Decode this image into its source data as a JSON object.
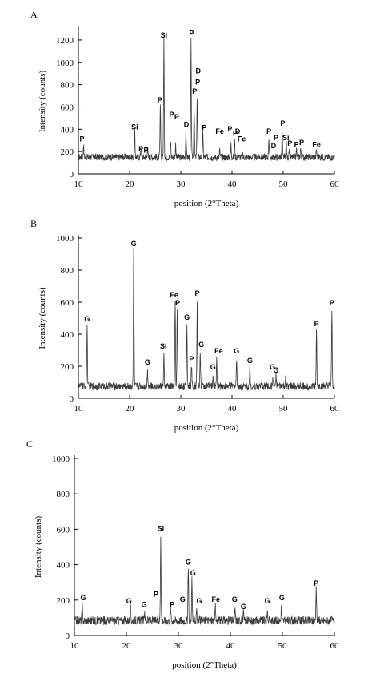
{
  "chart_data": [
    {
      "type": "line",
      "panel": "A",
      "xlabel": "position (2°Theta)",
      "ylabel": "Intensity (counts)",
      "xlim": [
        10,
        60
      ],
      "ylim": [
        0,
        1300
      ],
      "xticks": [
        10,
        20,
        30,
        40,
        50,
        60
      ],
      "yticks": [
        0,
        200,
        400,
        600,
        800,
        1000,
        1200
      ],
      "grid": false,
      "baseline": 150,
      "peaks": [
        [
          11,
          270
        ],
        [
          21,
          380
        ],
        [
          22.2,
          250
        ],
        [
          23.5,
          240
        ],
        [
          26,
          620
        ],
        [
          26.7,
          1200
        ],
        [
          28,
          300
        ],
        [
          29,
          270
        ],
        [
          31,
          400
        ],
        [
          32,
          1190
        ],
        [
          32.6,
          610
        ],
        [
          33.2,
          700
        ],
        [
          34.3,
          370
        ],
        [
          37.6,
          210
        ],
        [
          39.8,
          270
        ],
        [
          40.5,
          310
        ],
        [
          41.2,
          200
        ],
        [
          42,
          190
        ],
        [
          47.2,
          330
        ],
        [
          49.8,
          370
        ],
        [
          50.6,
          280
        ],
        [
          51.2,
          210
        ],
        [
          52.6,
          220
        ],
        [
          53.4,
          230
        ],
        [
          56.5,
          220
        ]
      ],
      "annotations": [
        {
          "text": "P",
          "x": 10.7,
          "y": 290
        },
        {
          "text": "Si",
          "x": 21,
          "y": 400
        },
        {
          "text": "P",
          "x": 22.2,
          "y": 200
        },
        {
          "text": "P",
          "x": 23.2,
          "y": 190
        },
        {
          "text": "P",
          "x": 25.9,
          "y": 640
        },
        {
          "text": "Si",
          "x": 26.7,
          "y": 1220
        },
        {
          "text": "P",
          "x": 28.2,
          "y": 510
        },
        {
          "text": "P",
          "x": 29.2,
          "y": 490
        },
        {
          "text": "D",
          "x": 31.1,
          "y": 420
        },
        {
          "text": "P",
          "x": 32.1,
          "y": 1240
        },
        {
          "text": "P",
          "x": 32.7,
          "y": 720
        },
        {
          "text": "P",
          "x": 33.3,
          "y": 800
        },
        {
          "text": "D",
          "x": 33.4,
          "y": 900
        },
        {
          "text": "P",
          "x": 34.6,
          "y": 390
        },
        {
          "text": "Fe",
          "x": 37.6,
          "y": 360
        },
        {
          "text": "P",
          "x": 39.6,
          "y": 380
        },
        {
          "text": "P",
          "x": 40.6,
          "y": 340
        },
        {
          "text": "D",
          "x": 41.1,
          "y": 360
        },
        {
          "text": "Fe",
          "x": 41.9,
          "y": 290
        },
        {
          "text": "P",
          "x": 47.2,
          "y": 360
        },
        {
          "text": "D",
          "x": 48.1,
          "y": 230
        },
        {
          "text": "P",
          "x": 48.6,
          "y": 300
        },
        {
          "text": "P",
          "x": 49.9,
          "y": 430
        },
        {
          "text": "Si",
          "x": 50.5,
          "y": 300
        },
        {
          "text": "P",
          "x": 51.3,
          "y": 250
        },
        {
          "text": "P",
          "x": 52.6,
          "y": 240
        },
        {
          "text": "P",
          "x": 53.6,
          "y": 260
        },
        {
          "text": "Fe",
          "x": 56.5,
          "y": 240
        }
      ]
    },
    {
      "type": "line",
      "panel": "B",
      "xlabel": "position (2°Theta)",
      "ylabel": "Intensity (counts)",
      "xlim": [
        10,
        60
      ],
      "ylim": [
        0,
        1000
      ],
      "xticks": [
        10,
        20,
        30,
        40,
        50,
        60
      ],
      "yticks": [
        0,
        200,
        400,
        600,
        800,
        1000
      ],
      "grid": false,
      "baseline": 75,
      "peaks": [
        [
          11.7,
          460
        ],
        [
          20.8,
          930
        ],
        [
          23.5,
          190
        ],
        [
          26.7,
          260
        ],
        [
          28.9,
          600
        ],
        [
          29.3,
          550
        ],
        [
          31.2,
          470
        ],
        [
          32.1,
          210
        ],
        [
          33.2,
          600
        ],
        [
          33.8,
          300
        ],
        [
          36.3,
          130
        ],
        [
          37,
          240
        ],
        [
          40.9,
          260
        ],
        [
          43.5,
          200
        ],
        [
          48,
          140
        ],
        [
          48.6,
          140
        ],
        [
          50.5,
          130
        ],
        [
          56.5,
          430
        ],
        [
          59.5,
          550
        ]
      ],
      "annotations": [
        {
          "text": "G",
          "x": 11.7,
          "y": 480
        },
        {
          "text": "G",
          "x": 20.8,
          "y": 950
        },
        {
          "text": "G",
          "x": 23.5,
          "y": 210
        },
        {
          "text": "SI",
          "x": 26.6,
          "y": 310
        },
        {
          "text": "Fe",
          "x": 28.7,
          "y": 630
        },
        {
          "text": "P",
          "x": 29.4,
          "y": 580
        },
        {
          "text": "G",
          "x": 31.2,
          "y": 490
        },
        {
          "text": "P",
          "x": 32.1,
          "y": 230
        },
        {
          "text": "P",
          "x": 33.2,
          "y": 640
        },
        {
          "text": "G",
          "x": 34,
          "y": 320
        },
        {
          "text": "G",
          "x": 36.3,
          "y": 180
        },
        {
          "text": "Fe",
          "x": 37.4,
          "y": 280
        },
        {
          "text": "G",
          "x": 40.9,
          "y": 280
        },
        {
          "text": "G",
          "x": 43.5,
          "y": 220
        },
        {
          "text": "G",
          "x": 47.9,
          "y": 180
        },
        {
          "text": "G",
          "x": 48.6,
          "y": 160
        },
        {
          "text": "P",
          "x": 56.5,
          "y": 450
        },
        {
          "text": "P",
          "x": 59.5,
          "y": 580
        }
      ]
    },
    {
      "type": "line",
      "panel": "C",
      "xlabel": "position (2°Theta)",
      "ylabel": "Intensity (counts)",
      "xlim": [
        10,
        60
      ],
      "ylim": [
        0,
        1000
      ],
      "xticks": [
        10,
        20,
        30,
        40,
        50,
        60
      ],
      "yticks": [
        0,
        200,
        400,
        600,
        800,
        1000
      ],
      "grid": false,
      "baseline": 85,
      "peaks": [
        [
          11.5,
          170
        ],
        [
          20.8,
          160
        ],
        [
          23.5,
          140
        ],
        [
          26.6,
          570
        ],
        [
          28.5,
          150
        ],
        [
          31.9,
          380
        ],
        [
          32.6,
          320
        ],
        [
          33.5,
          160
        ],
        [
          37.1,
          160
        ],
        [
          40.9,
          150
        ],
        [
          42.5,
          130
        ],
        [
          47.1,
          140
        ],
        [
          49.8,
          160
        ],
        [
          56.5,
          270
        ]
      ],
      "annotations": [
        {
          "text": "G",
          "x": 11.7,
          "y": 200
        },
        {
          "text": "G",
          "x": 20.5,
          "y": 180
        },
        {
          "text": "G",
          "x": 23.4,
          "y": 160
        },
        {
          "text": "P",
          "x": 25.7,
          "y": 220
        },
        {
          "text": "SI",
          "x": 26.6,
          "y": 590
        },
        {
          "text": "P",
          "x": 28.8,
          "y": 160
        },
        {
          "text": "G",
          "x": 30.8,
          "y": 190
        },
        {
          "text": "G",
          "x": 31.9,
          "y": 400
        },
        {
          "text": "G",
          "x": 32.8,
          "y": 340
        },
        {
          "text": "G",
          "x": 34,
          "y": 180
        },
        {
          "text": "Fe",
          "x": 37.2,
          "y": 190
        },
        {
          "text": "G",
          "x": 40.8,
          "y": 190
        },
        {
          "text": "G",
          "x": 42.5,
          "y": 150
        },
        {
          "text": "G",
          "x": 47.1,
          "y": 180
        },
        {
          "text": "G",
          "x": 49.9,
          "y": 200
        },
        {
          "text": "P",
          "x": 56.5,
          "y": 280
        }
      ]
    }
  ]
}
